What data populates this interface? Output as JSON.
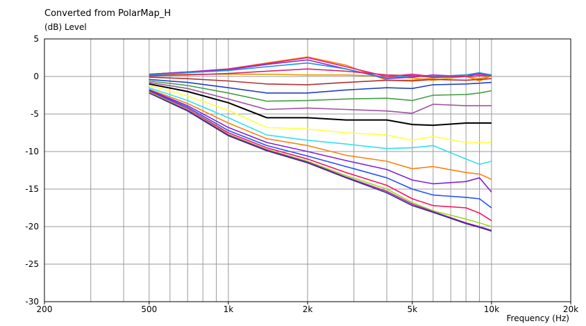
{
  "chart_data": {
    "type": "line",
    "title": "Converted from PolarMap_H",
    "ylabel": "(dB)  Level",
    "xlabel": "Frequency  (Hz)",
    "x_scale": "log",
    "xlim": [
      200,
      20000
    ],
    "ylim": [
      -30,
      5
    ],
    "grid": true,
    "x_ticks": [
      {
        "value": 200,
        "label": "200"
      },
      {
        "value": 500,
        "label": "500"
      },
      {
        "value": 1000,
        "label": "1k"
      },
      {
        "value": 2000,
        "label": "2k"
      },
      {
        "value": 5000,
        "label": "5k"
      },
      {
        "value": 10000,
        "label": "10k"
      },
      {
        "value": 20000,
        "label": "20k"
      }
    ],
    "y_ticks": [
      5,
      0,
      -5,
      -10,
      -15,
      -20,
      -25,
      -30
    ],
    "x": [
      500,
      700,
      1000,
      1400,
      2000,
      2800,
      4000,
      5000,
      6000,
      8000,
      9000,
      10000
    ],
    "series": [
      {
        "color": "#e0a000",
        "values": [
          0.2,
          0.3,
          0.3,
          0.3,
          0.2,
          0.2,
          0.0,
          -0.2,
          -0.5,
          0.0,
          -0.3,
          0.1
        ]
      },
      {
        "color": "#ff8000",
        "values": [
          0.3,
          0.6,
          1.0,
          1.8,
          2.6,
          1.5,
          -0.5,
          -0.5,
          -0.2,
          0.0,
          -0.6,
          0.1
        ]
      },
      {
        "color": "#e0207a",
        "values": [
          0.3,
          0.6,
          1.0,
          1.7,
          2.5,
          1.3,
          0.0,
          0.3,
          0.0,
          0.2,
          0.3,
          0.2
        ]
      },
      {
        "color": "#9030d0",
        "values": [
          0.3,
          0.6,
          0.9,
          1.6,
          2.2,
          1.0,
          -0.3,
          -0.1,
          0.2,
          0.0,
          0.4,
          0.2
        ]
      },
      {
        "color": "#1e90e0",
        "values": [
          0.2,
          0.5,
          0.8,
          1.3,
          1.8,
          1.0,
          -0.2,
          0.1,
          0.0,
          0.2,
          0.5,
          0.2
        ]
      },
      {
        "color": "#e0206a",
        "values": [
          0.1,
          0.2,
          0.4,
          0.7,
          1.0,
          0.7,
          0.2,
          0.1,
          -0.1,
          0.0,
          0.1,
          0.1
        ]
      },
      {
        "color": "#b03030",
        "values": [
          -0.1,
          -0.3,
          -0.6,
          -1.0,
          -1.1,
          -0.8,
          -0.5,
          -0.6,
          -0.4,
          -0.5,
          -0.4,
          -0.3
        ]
      },
      {
        "color": "#2040c0",
        "values": [
          -0.4,
          -0.8,
          -1.5,
          -2.2,
          -2.2,
          -1.8,
          -1.5,
          -1.6,
          -1.1,
          -1.0,
          -0.9,
          -0.8
        ]
      },
      {
        "color": "#40a040",
        "values": [
          -0.6,
          -1.2,
          -2.2,
          -3.3,
          -3.2,
          -3.0,
          -2.9,
          -3.2,
          -2.5,
          -2.4,
          -2.2,
          -1.9
        ]
      },
      {
        "color": "#a050a0",
        "values": [
          -0.8,
          -1.6,
          -3.0,
          -4.4,
          -4.2,
          -4.4,
          -4.6,
          -4.9,
          -3.7,
          -3.9,
          -3.9,
          -3.9
        ]
      },
      {
        "color": "#000000",
        "values": [
          -1.0,
          -2.0,
          -3.5,
          -5.5,
          -5.5,
          -5.8,
          -5.8,
          -6.4,
          -6.5,
          -6.2,
          -6.2,
          -6.2
        ]
      },
      {
        "color": "#ffff40",
        "values": [
          -1.2,
          -2.6,
          -4.5,
          -6.8,
          -7.0,
          -7.5,
          -7.8,
          -8.5,
          -8.0,
          -8.8,
          -8.8,
          -8.8
        ]
      },
      {
        "color": "#30e0f0",
        "values": [
          -1.5,
          -3.2,
          -5.5,
          -7.8,
          -8.5,
          -9.0,
          -9.6,
          -9.5,
          -9.2,
          -11.0,
          -11.7,
          -11.3
        ]
      },
      {
        "color": "#ff8010",
        "values": [
          -1.7,
          -3.6,
          -6.2,
          -8.3,
          -9.2,
          -10.5,
          -11.3,
          -12.3,
          -12.0,
          -12.8,
          -13.0,
          -13.7
        ]
      },
      {
        "color": "#8020e0",
        "values": [
          -1.8,
          -3.9,
          -6.8,
          -8.8,
          -10.0,
          -11.2,
          -12.4,
          -13.8,
          -14.3,
          -14.0,
          -13.5,
          -15.4
        ]
      },
      {
        "color": "#2050ff",
        "values": [
          -1.9,
          -4.1,
          -7.2,
          -9.2,
          -10.6,
          -12.0,
          -13.5,
          -15.0,
          -15.8,
          -16.1,
          -16.3,
          -17.5
        ]
      },
      {
        "color": "#ff1060",
        "values": [
          -2.0,
          -4.3,
          -7.5,
          -9.5,
          -11.0,
          -12.8,
          -14.5,
          -16.3,
          -17.2,
          -17.5,
          -18.2,
          -19.2
        ]
      },
      {
        "color": "#90e020",
        "values": [
          -2.1,
          -4.4,
          -7.7,
          -9.7,
          -11.3,
          -13.2,
          -15.0,
          -16.8,
          -17.9,
          -19.0,
          -19.5,
          -20.0
        ]
      },
      {
        "color": "#c020a0",
        "values": [
          -2.2,
          -4.5,
          -7.8,
          -9.8,
          -11.4,
          -13.4,
          -15.3,
          -17.0,
          -18.0,
          -19.5,
          -20.0,
          -20.5
        ]
      },
      {
        "color": "#303098",
        "values": [
          -2.2,
          -4.6,
          -7.9,
          -9.9,
          -11.5,
          -13.5,
          -15.5,
          -17.2,
          -18.1,
          -19.6,
          -20.1,
          -20.6
        ]
      }
    ]
  }
}
